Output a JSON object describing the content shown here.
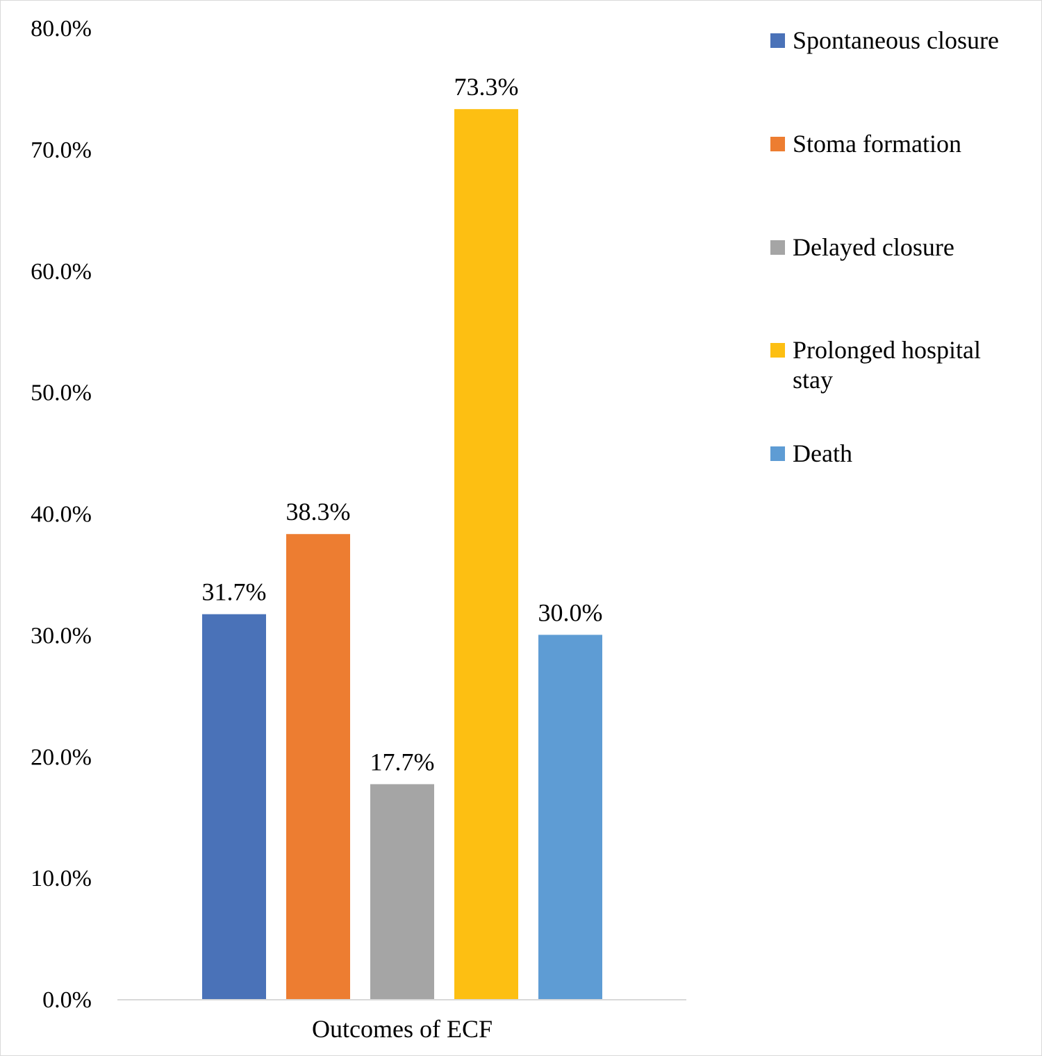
{
  "chart_data": {
    "type": "bar",
    "categories": [
      "Outcomes of ECF"
    ],
    "series": [
      {
        "name": "Spontaneous closure",
        "values": [
          31.7
        ],
        "label": "31.7%",
        "color": "#4a72b8"
      },
      {
        "name": "Stoma formation",
        "values": [
          38.3
        ],
        "label": "38.3%",
        "color": "#ed7d31"
      },
      {
        "name": "Delayed closure",
        "values": [
          17.7
        ],
        "label": "17.7%",
        "color": "#a5a5a5"
      },
      {
        "name": "Prolonged hospital stay",
        "values": [
          73.3
        ],
        "label": "73.3%",
        "color": "#fdbf12"
      },
      {
        "name": "Death",
        "values": [
          30.0
        ],
        "label": "30.0%",
        "color": "#5e9cd4"
      }
    ],
    "ylim": [
      0,
      80
    ],
    "yticks": [
      "0.0%",
      "10.0%",
      "20.0%",
      "30.0%",
      "40.0%",
      "50.0%",
      "60.0%",
      "70.0%",
      "80.0%"
    ],
    "grid": false,
    "legend_position": "right",
    "axis_color": "#d9d9d9"
  }
}
